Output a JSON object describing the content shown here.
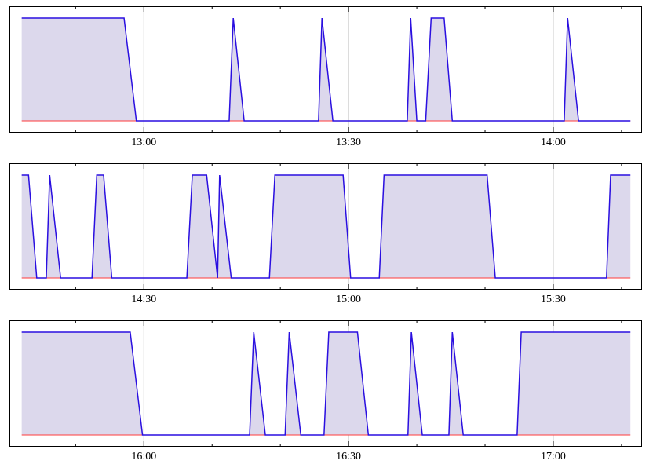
{
  "chart_data": [
    {
      "type": "area",
      "color": "#2a0fe0",
      "fill_color": "#dcd8ec",
      "hline": {
        "value": 0,
        "color": "#ff3b3b"
      },
      "grid": true,
      "xlim": [
        760.3,
        853.0
      ],
      "ylim": [
        -0.115,
        1.115
      ],
      "xticks": [
        {
          "value": 780,
          "label": "13:00"
        },
        {
          "value": 810,
          "label": "13:30"
        },
        {
          "value": 840,
          "label": "14:00"
        }
      ],
      "xminorticks": [
        770,
        790,
        800,
        820,
        830,
        850
      ],
      "x": [
        762.1,
        777.1,
        778.9,
        792.5,
        793.1,
        794.7,
        805.6,
        806.1,
        807.7,
        818.6,
        819.1,
        820.0,
        821.3,
        822.1,
        824.0,
        825.2,
        841.6,
        842.1,
        843.7,
        851.3
      ],
      "values": [
        1,
        1,
        0,
        0,
        1,
        0,
        0,
        1,
        0,
        0,
        1,
        0,
        0,
        1,
        1,
        0,
        0,
        1,
        0,
        0
      ]
    },
    {
      "type": "area",
      "color": "#2a0fe0",
      "fill_color": "#dcd8ec",
      "hline": {
        "value": 0,
        "color": "#ff3b3b"
      },
      "grid": true,
      "xlim": [
        850.3,
        943.0
      ],
      "ylim": [
        -0.115,
        1.115
      ],
      "xticks": [
        {
          "value": 870,
          "label": "14:30"
        },
        {
          "value": 900,
          "label": "15:00"
        },
        {
          "value": 930,
          "label": "15:30"
        }
      ],
      "xminorticks": [
        860,
        880,
        890,
        910,
        920,
        940
      ],
      "x": [
        852.1,
        853.1,
        854.3,
        855.7,
        856.2,
        857.8,
        862.4,
        863.1,
        864.1,
        865.3,
        876.3,
        877.1,
        879.2,
        880.8,
        881.1,
        882.8,
        888.4,
        889.2,
        899.2,
        900.3,
        904.5,
        905.2,
        920.3,
        921.5,
        937.8,
        938.4,
        941.3
      ],
      "values": [
        1,
        1,
        0,
        0,
        1,
        0,
        0,
        1,
        1,
        0,
        0,
        1,
        1,
        0,
        1,
        0,
        0,
        1,
        1,
        0,
        0,
        1,
        1,
        0,
        0,
        1,
        1
      ]
    },
    {
      "type": "area",
      "color": "#2a0fe0",
      "fill_color": "#dcd8ec",
      "hline": {
        "value": 0,
        "color": "#ff3b3b"
      },
      "grid": true,
      "xlim": [
        940.3,
        1033.0
      ],
      "ylim": [
        -0.115,
        1.115
      ],
      "xticks": [
        {
          "value": 960,
          "label": "16:00"
        },
        {
          "value": 990,
          "label": "16:30"
        },
        {
          "value": 1020,
          "label": "17:00"
        }
      ],
      "xminorticks": [
        950,
        970,
        980,
        1000,
        1010,
        1030
      ],
      "x": [
        942.1,
        958.0,
        959.8,
        975.5,
        976.1,
        977.8,
        980.7,
        981.3,
        983.0,
        986.4,
        987.1,
        991.3,
        992.9,
        998.7,
        999.2,
        1000.8,
        1004.7,
        1005.2,
        1006.8,
        1014.7,
        1015.3,
        1031.3
      ],
      "values": [
        1,
        1,
        0,
        0,
        1,
        0,
        0,
        1,
        0,
        0,
        1,
        1,
        0,
        0,
        1,
        0,
        0,
        1,
        0,
        0,
        1,
        1
      ]
    }
  ]
}
